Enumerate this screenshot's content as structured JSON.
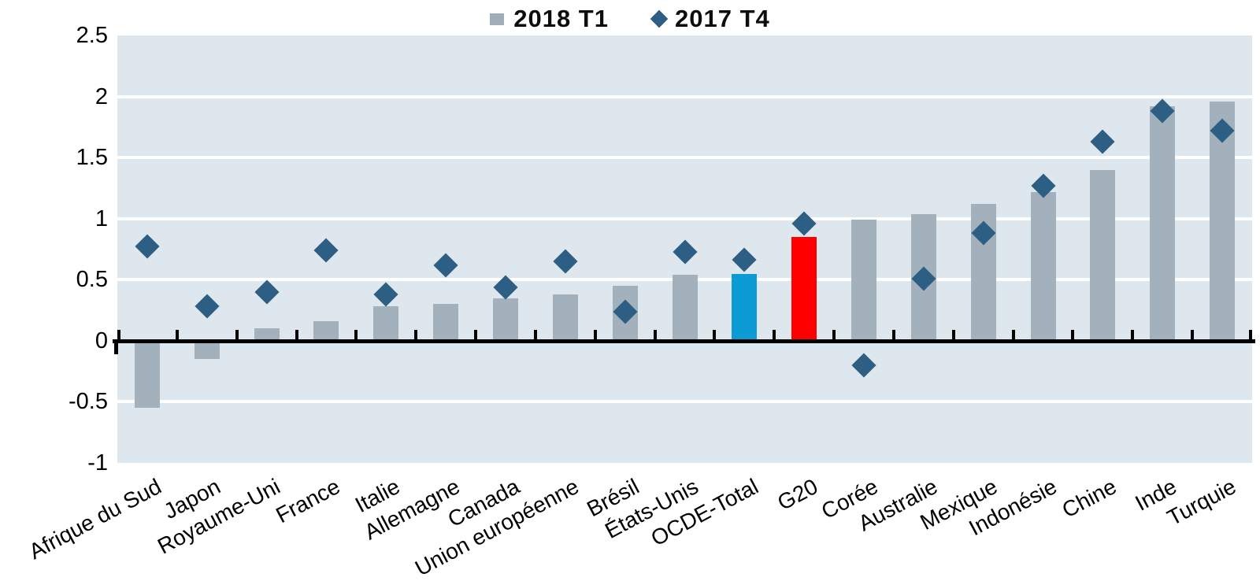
{
  "legend": {
    "items": [
      {
        "label": "2018 T1",
        "marker": "square",
        "color": "#9fadb9"
      },
      {
        "label": "2017 T4",
        "marker": "diamond",
        "color": "#2d5f84"
      }
    ],
    "position": "top-center"
  },
  "chart_data": {
    "type": "bar",
    "title": "",
    "xlabel": "",
    "ylabel": "",
    "categories": [
      "Afrique du Sud",
      "Japon",
      "Royaume-Uni",
      "France",
      "Italie",
      "Allemagne",
      "Canada",
      "Union européenne",
      "Brésil",
      "États-Unis",
      "OCDE-Total",
      "G20",
      "Corée",
      "Australie",
      "Mexique",
      "Indonésie",
      "Chine",
      "Inde",
      "Turquie"
    ],
    "series": [
      {
        "name": "2018 T1",
        "type": "bar",
        "values": [
          -0.55,
          -0.15,
          0.1,
          0.16,
          0.28,
          0.3,
          0.35,
          0.38,
          0.45,
          0.54,
          0.55,
          0.85,
          0.99,
          1.04,
          1.12,
          1.22,
          1.4,
          1.92,
          1.96
        ]
      },
      {
        "name": "2017 T4",
        "type": "scatter-diamond",
        "values": [
          0.77,
          0.28,
          0.4,
          0.74,
          0.38,
          0.62,
          0.44,
          0.65,
          0.24,
          0.73,
          0.66,
          0.96,
          -0.2,
          0.51,
          0.88,
          1.27,
          1.63,
          1.88,
          1.72
        ]
      }
    ],
    "ylim": [
      -1,
      2.5
    ],
    "ytick_labels": [
      "2.5",
      "2",
      "1.5",
      "1",
      "0.5",
      "0",
      "-0.5",
      "-1"
    ],
    "ytick_values": [
      2.5,
      2,
      1.5,
      1,
      0.5,
      0,
      -0.5,
      -1
    ],
    "gridline_values": [
      2,
      1.5,
      1,
      0.5,
      -0.5
    ],
    "grid": true,
    "legend_position": "top-center",
    "colors": {
      "bar_default": "#a3b1bc",
      "marker": "#2d5f84",
      "plot_bg": "#dee7ed",
      "gridline": "#ffffff",
      "axis": "#000000"
    },
    "bar_color_overrides": {
      "OCDE-Total": "#0d9bd6",
      "G20": "#fe0000"
    }
  }
}
